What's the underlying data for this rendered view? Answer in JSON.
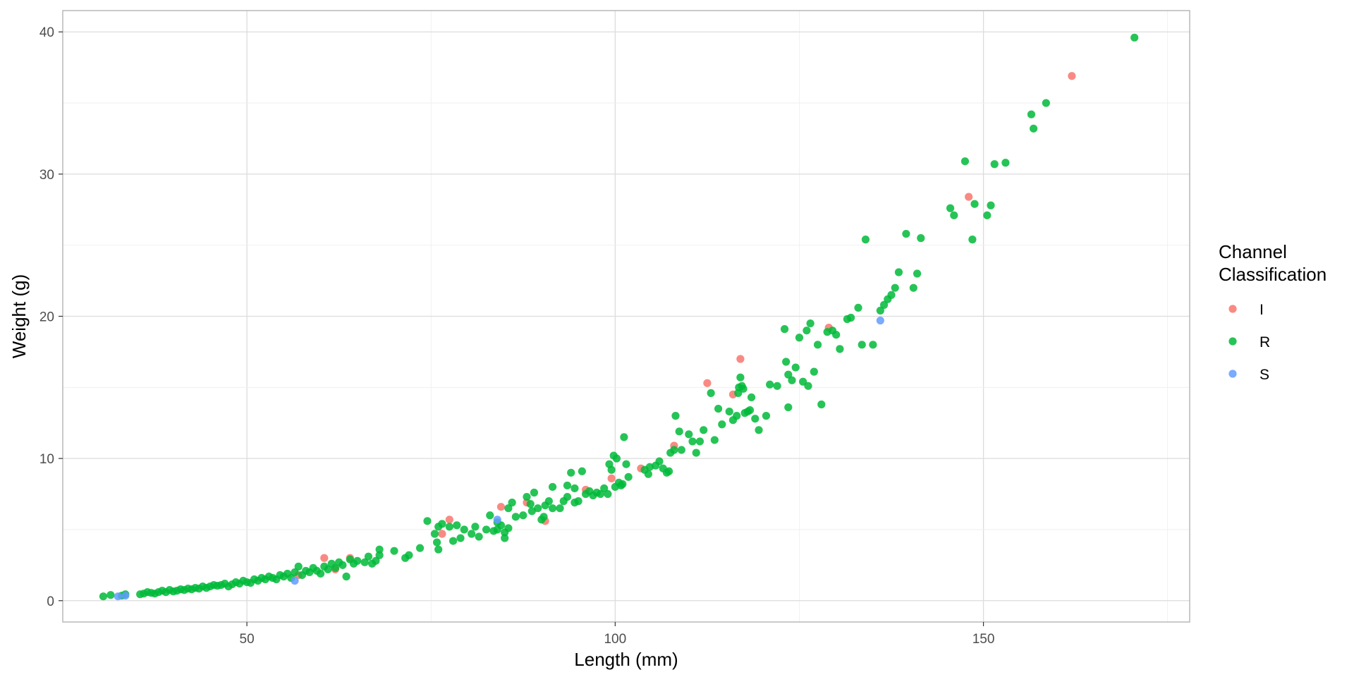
{
  "chart_data": {
    "type": "scatter",
    "xlabel": "Length (mm)",
    "ylabel": "Weight (g)",
    "xlim": [
      25,
      178
    ],
    "ylim": [
      -1.5,
      41.5
    ],
    "x_ticks": [
      50,
      100,
      150
    ],
    "y_ticks": [
      0,
      10,
      20,
      30,
      40
    ],
    "x_tick_labels": [
      "50",
      "100",
      "150"
    ],
    "y_tick_labels": [
      "0",
      "10",
      "20",
      "30",
      "40"
    ],
    "grid": true,
    "legend": {
      "title_lines": [
        "Channel",
        "Classification"
      ],
      "placement": "right"
    },
    "series": [
      {
        "name": "I",
        "color": "#F8766D",
        "points": [
          [
            57,
            1.8
          ],
          [
            60.5,
            3.0
          ],
          [
            62,
            2.2
          ],
          [
            64,
            3.0
          ],
          [
            76.5,
            4.7
          ],
          [
            77.5,
            5.7
          ],
          [
            84.5,
            6.6
          ],
          [
            88,
            6.9
          ],
          [
            90.5,
            5.6
          ],
          [
            96,
            7.8
          ],
          [
            99.5,
            8.6
          ],
          [
            103.5,
            9.3
          ],
          [
            108,
            10.9
          ],
          [
            112.5,
            15.3
          ],
          [
            116,
            14.5
          ],
          [
            117,
            17.0
          ],
          [
            129,
            19.2
          ],
          [
            148,
            28.4
          ],
          [
            162,
            36.9
          ]
        ]
      },
      {
        "name": "R",
        "color": "#00BA38",
        "points": [
          [
            30.5,
            0.3
          ],
          [
            31.5,
            0.4
          ],
          [
            33,
            0.35
          ],
          [
            33.5,
            0.45
          ],
          [
            35.5,
            0.45
          ],
          [
            36,
            0.5
          ],
          [
            36.5,
            0.6
          ],
          [
            37,
            0.55
          ],
          [
            37.5,
            0.5
          ],
          [
            38,
            0.6
          ],
          [
            38.5,
            0.7
          ],
          [
            39,
            0.6
          ],
          [
            39.5,
            0.75
          ],
          [
            40,
            0.65
          ],
          [
            40.5,
            0.7
          ],
          [
            41,
            0.8
          ],
          [
            41.5,
            0.75
          ],
          [
            42,
            0.85
          ],
          [
            42.5,
            0.8
          ],
          [
            43,
            0.9
          ],
          [
            43.5,
            0.85
          ],
          [
            44,
            1.0
          ],
          [
            44.5,
            0.9
          ],
          [
            45,
            1.0
          ],
          [
            45.5,
            1.1
          ],
          [
            46,
            1.05
          ],
          [
            46.5,
            1.1
          ],
          [
            47,
            1.2
          ],
          [
            47.5,
            1.0
          ],
          [
            48,
            1.15
          ],
          [
            48.5,
            1.3
          ],
          [
            49,
            1.2
          ],
          [
            49.5,
            1.4
          ],
          [
            50,
            1.3
          ],
          [
            50.5,
            1.25
          ],
          [
            51,
            1.5
          ],
          [
            51.5,
            1.4
          ],
          [
            52,
            1.6
          ],
          [
            52.5,
            1.5
          ],
          [
            53,
            1.7
          ],
          [
            53.5,
            1.6
          ],
          [
            54,
            1.5
          ],
          [
            54.5,
            1.8
          ],
          [
            55,
            1.7
          ],
          [
            55.5,
            1.9
          ],
          [
            56,
            1.6
          ],
          [
            56.5,
            2.0
          ],
          [
            57,
            2.4
          ],
          [
            57.5,
            1.8
          ],
          [
            58,
            2.1
          ],
          [
            58.5,
            2.0
          ],
          [
            59,
            2.3
          ],
          [
            59.5,
            2.1
          ],
          [
            60,
            1.9
          ],
          [
            60.5,
            2.4
          ],
          [
            61,
            2.2
          ],
          [
            61.5,
            2.6
          ],
          [
            62,
            2.3
          ],
          [
            62.5,
            2.7
          ],
          [
            63,
            2.5
          ],
          [
            63.5,
            1.7
          ],
          [
            64,
            2.9
          ],
          [
            64.5,
            2.6
          ],
          [
            65,
            2.8
          ],
          [
            66,
            2.7
          ],
          [
            66.5,
            3.1
          ],
          [
            67,
            2.6
          ],
          [
            67.5,
            2.8
          ],
          [
            68,
            3.2
          ],
          [
            68,
            3.6
          ],
          [
            70,
            3.5
          ],
          [
            71.5,
            3.0
          ],
          [
            72,
            3.2
          ],
          [
            73.5,
            3.7
          ],
          [
            74.5,
            5.6
          ],
          [
            75.5,
            4.7
          ],
          [
            75.8,
            4.1
          ],
          [
            76,
            3.6
          ],
          [
            76,
            5.2
          ],
          [
            76.5,
            5.4
          ],
          [
            77.5,
            5.2
          ],
          [
            78,
            4.2
          ],
          [
            78.5,
            5.3
          ],
          [
            79,
            4.4
          ],
          [
            79.5,
            5.0
          ],
          [
            80.5,
            4.7
          ],
          [
            81,
            5.2
          ],
          [
            81.5,
            4.5
          ],
          [
            82.5,
            5.0
          ],
          [
            83,
            6.0
          ],
          [
            83.5,
            4.9
          ],
          [
            84,
            5.5
          ],
          [
            84,
            5.0
          ],
          [
            84.5,
            5.3
          ],
          [
            85,
            4.8
          ],
          [
            85,
            4.4
          ],
          [
            85.5,
            6.5
          ],
          [
            85.5,
            5.1
          ],
          [
            86,
            6.9
          ],
          [
            86.5,
            5.9
          ],
          [
            87.5,
            6.0
          ],
          [
            88,
            7.3
          ],
          [
            88.5,
            6.8
          ],
          [
            88.7,
            6.3
          ],
          [
            89,
            7.6
          ],
          [
            89.5,
            6.5
          ],
          [
            90,
            5.7
          ],
          [
            90.3,
            5.9
          ],
          [
            90.5,
            6.7
          ],
          [
            91,
            7.0
          ],
          [
            91.5,
            6.5
          ],
          [
            91.5,
            8.0
          ],
          [
            92.5,
            6.5
          ],
          [
            93,
            7.0
          ],
          [
            93.5,
            7.3
          ],
          [
            93.5,
            8.1
          ],
          [
            94,
            9.0
          ],
          [
            94.5,
            7.9
          ],
          [
            94.5,
            6.9
          ],
          [
            95,
            7.0
          ],
          [
            95.5,
            9.1
          ],
          [
            96,
            7.5
          ],
          [
            96.5,
            7.7
          ],
          [
            97,
            7.4
          ],
          [
            97.5,
            7.6
          ],
          [
            98,
            7.5
          ],
          [
            98.5,
            7.9
          ],
          [
            99,
            7.5
          ],
          [
            99.2,
            9.6
          ],
          [
            99.5,
            9.2
          ],
          [
            99.8,
            10.2
          ],
          [
            100,
            8.0
          ],
          [
            100.2,
            10.0
          ],
          [
            100.5,
            8.3
          ],
          [
            100.8,
            8.1
          ],
          [
            101,
            8.2
          ],
          [
            101.2,
            11.5
          ],
          [
            101.5,
            9.6
          ],
          [
            101.8,
            8.7
          ],
          [
            104,
            9.2
          ],
          [
            104.5,
            8.9
          ],
          [
            104.7,
            9.4
          ],
          [
            105.5,
            9.5
          ],
          [
            106,
            9.8
          ],
          [
            106.5,
            9.3
          ],
          [
            107,
            9.0
          ],
          [
            107.3,
            9.1
          ],
          [
            107.5,
            10.4
          ],
          [
            108,
            10.6
          ],
          [
            108.2,
            13.0
          ],
          [
            108.7,
            11.9
          ],
          [
            109,
            10.6
          ],
          [
            110,
            11.7
          ],
          [
            110.5,
            11.2
          ],
          [
            111,
            10.4
          ],
          [
            111.5,
            11.2
          ],
          [
            112,
            12.0
          ],
          [
            113,
            14.6
          ],
          [
            113.5,
            11.3
          ],
          [
            114,
            13.5
          ],
          [
            114.5,
            12.4
          ],
          [
            115.5,
            13.3
          ],
          [
            116,
            12.7
          ],
          [
            116.5,
            13.0
          ],
          [
            116.7,
            14.6
          ],
          [
            116.8,
            15.0
          ],
          [
            117,
            15.7
          ],
          [
            117.2,
            15.1
          ],
          [
            117.4,
            14.9
          ],
          [
            117.6,
            13.2
          ],
          [
            118,
            13.3
          ],
          [
            118.3,
            13.4
          ],
          [
            118.5,
            14.3
          ],
          [
            119,
            12.8
          ],
          [
            119.5,
            12.0
          ],
          [
            120.5,
            13.0
          ],
          [
            121,
            15.2
          ],
          [
            122,
            15.1
          ],
          [
            123,
            19.1
          ],
          [
            123.2,
            16.8
          ],
          [
            123.5,
            13.6
          ],
          [
            123.5,
            15.9
          ],
          [
            124,
            15.5
          ],
          [
            124.5,
            16.4
          ],
          [
            125,
            18.5
          ],
          [
            125.5,
            15.4
          ],
          [
            126,
            19.0
          ],
          [
            126.2,
            15.1
          ],
          [
            126.5,
            19.5
          ],
          [
            127,
            16.1
          ],
          [
            127.5,
            18.0
          ],
          [
            128,
            13.8
          ],
          [
            128.8,
            18.9
          ],
          [
            129.5,
            19.0
          ],
          [
            130,
            18.7
          ],
          [
            130.5,
            17.7
          ],
          [
            131.5,
            19.8
          ],
          [
            132,
            19.9
          ],
          [
            133,
            20.6
          ],
          [
            133.5,
            18.0
          ],
          [
            134,
            25.4
          ],
          [
            135,
            18.0
          ],
          [
            136,
            20.4
          ],
          [
            136.5,
            20.8
          ],
          [
            137,
            21.2
          ],
          [
            137.5,
            21.5
          ],
          [
            138,
            22.0
          ],
          [
            138.5,
            23.1
          ],
          [
            139.5,
            25.8
          ],
          [
            140.5,
            22.0
          ],
          [
            141,
            23.0
          ],
          [
            141.5,
            25.5
          ],
          [
            145.5,
            27.6
          ],
          [
            146,
            27.1
          ],
          [
            147.5,
            30.9
          ],
          [
            148.5,
            25.4
          ],
          [
            148.8,
            27.9
          ],
          [
            150.5,
            27.1
          ],
          [
            151,
            27.8
          ],
          [
            151.5,
            30.7
          ],
          [
            153,
            30.8
          ],
          [
            156.5,
            34.2
          ],
          [
            156.8,
            33.2
          ],
          [
            158.5,
            35.0
          ],
          [
            170.5,
            39.6
          ]
        ]
      },
      {
        "name": "S",
        "color": "#619CFF",
        "points": [
          [
            32.5,
            0.3
          ],
          [
            33.5,
            0.35
          ],
          [
            56.5,
            1.4
          ],
          [
            84,
            5.7
          ],
          [
            136,
            19.7
          ]
        ]
      }
    ]
  }
}
